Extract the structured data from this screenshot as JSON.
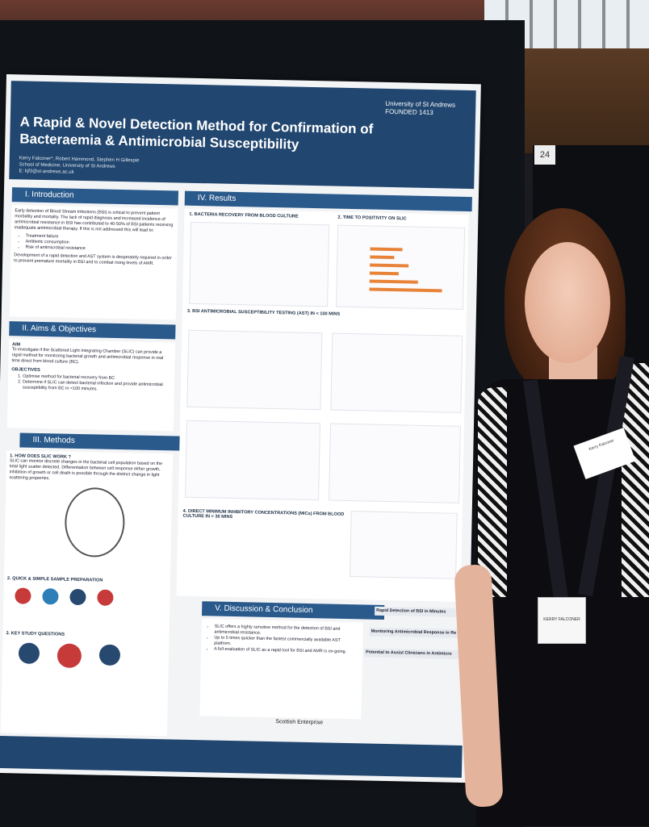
{
  "poster": {
    "title": "A Rapid & Novel Detection Method for Confirmation of Bacteraemia & Antimicrobial Susceptibility",
    "authors": "Kerry Falconer*, Robert Hammond, Stephen H Gillespie",
    "affiliation": "School of Medicine, University of St Andrews",
    "email": "E: kjf3@st-andrews.ac.uk",
    "logo_top": "University of St Andrews",
    "logo_founded": "FOUNDED 1413",
    "sections": {
      "introduction": "I. Introduction",
      "aims": "II. Aims & Objectives",
      "methods": "III. Methods",
      "results": "IV. Results",
      "discussion": "V. Discussion & Conclusion"
    },
    "intro_text": "Early detection of Blood Stream Infections (BSI) is critical to prevent patient morbidity and mortality. The lack of rapid diagnosis and increased incidence of antimicrobial resistance in BSI has contributed to 40-50% of BSI patients receiving inadequate antimicrobial therapy. If this is not addressed this will lead to:",
    "intro_bullets": [
      "Treatment failure",
      "Antibiotic consumption",
      "Risk of antimicrobial resistance"
    ],
    "intro_text_2": "Development of a rapid detection and AST system is desperately required in order to prevent premature mortality in BSI and to combat rising levels of AMR.",
    "aim_head": "AIM",
    "aim_text": "To investigate if the Scattered Light Integrating Chamber (SLIC) can provide a rapid method for monitoring bacterial growth and antimicrobial response in real time direct from blood culture (BC).",
    "objectives_head": "OBJECTIVES",
    "objectives": [
      "Optimise method for bacterial recovery from BC",
      "Determine if SLIC can detect bacterial infection and provide antimicrobial susceptibility from BC in <100 minutes."
    ],
    "methods_q1": "1. HOW DOES SLIC WORK ?",
    "methods_q1_text": "SLIC can monitor discrete changes in the bacterial cell population based on the total light scatter detected. Differentiation between cell response either growth, inhibition of growth or cell death is possible through the distinct change in light scattering properties.",
    "methods_q2": "2. QUICK & SIMPLE SAMPLE PREPARATION",
    "methods_q3": "3. KEY STUDY QUESTIONS",
    "results_1": "1. BACTERIA RECOVERY FROM BLOOD CULTURE",
    "results_2": "2. TIME TO POSITIVITY ON SLIC",
    "results_3": "3. BSI ANTIMICROBIAL SUSCEPTIBILITY TESTING (AST) IN < 100 MINS",
    "results_4": "4. DIRECT MINIMUM INHIBITORY CONCENTRATIONS (MICs) FROM BLOOD CULTURE IN < 30 MINS",
    "discussion_bullets": [
      "SLIC offers a highly sensitive method for the detection of BSI and antimicrobial resistance.",
      "Up to 5 times quicker than the fastest commercially available AST platform.",
      "A full-evaluation of SLIC as a rapid tool for BSI and AMR is on-going."
    ],
    "callouts": [
      "Rapid Detection of BSI in Minutes",
      "Monitoring Antimicrobial Response in Re",
      "Potential to Assist Clinicians in Antimicro"
    ],
    "sponsor": "Scottish Enterprise",
    "board_number": "24"
  },
  "badges": {
    "upper": "Kerry Falconer",
    "lower": "KERRY FALCONER"
  },
  "colors": {
    "poster_header": "#21466f",
    "section_bar": "#2a5a8c",
    "chart_bar": "#e8843a"
  }
}
